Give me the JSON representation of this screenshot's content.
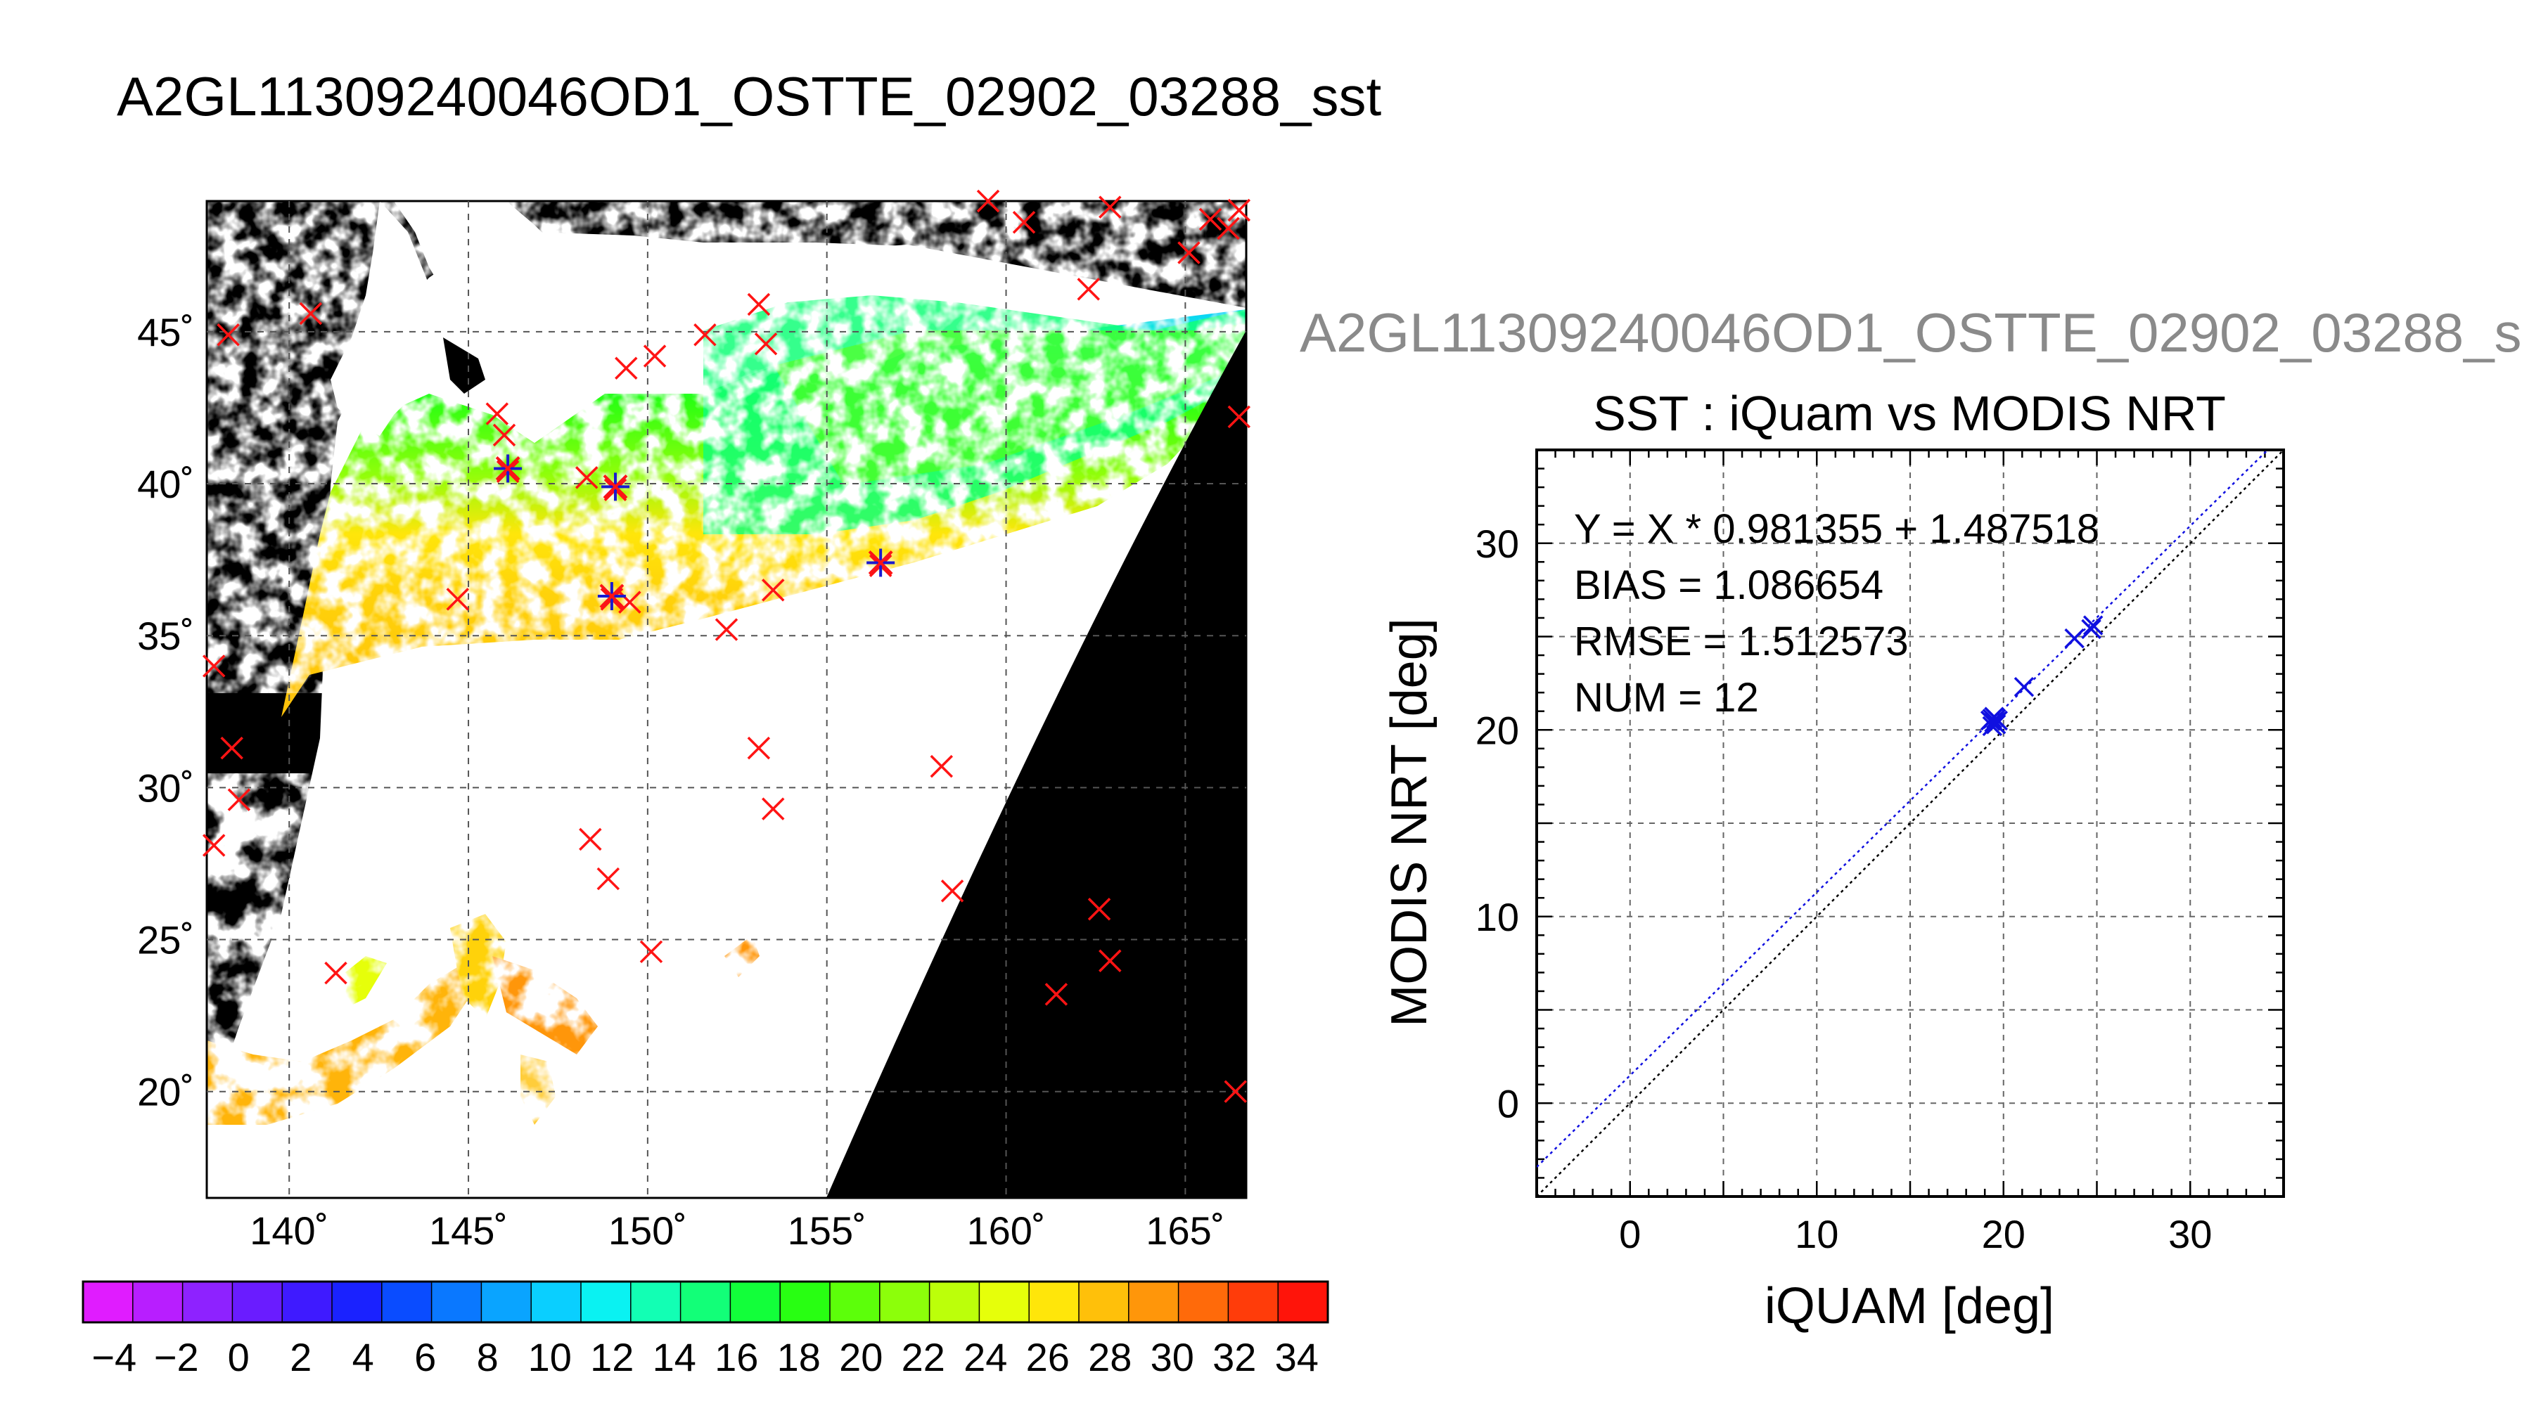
{
  "page_title": "A2GL11309240046OD1_OSTTE_02902_03288_sst",
  "scatter_header": "A2GL11309240046OD1_OSTTE_02902_03288_s",
  "chart_data": [
    {
      "type": "heatmap",
      "title": "A2GL11309240046OD1_OSTTE_02902_03288_sst",
      "x_ticks": [
        "140˚",
        "145˚",
        "150˚",
        "155˚",
        "160˚",
        "165˚"
      ],
      "y_ticks": [
        "20˚",
        "25˚",
        "30˚",
        "35˚",
        "40˚",
        "45˚"
      ],
      "x_range": [
        137.7,
        166.7
      ],
      "y_range": [
        16.5,
        49.3
      ],
      "grid": true,
      "colorbar": {
        "ticks": [
          "−4",
          "−2",
          "0",
          "2",
          "4",
          "6",
          "8",
          "10",
          "12",
          "14",
          "16",
          "18",
          "20",
          "22",
          "24",
          "26",
          "28",
          "30",
          "32",
          "34"
        ],
        "range": [
          -5,
          35
        ],
        "colors": [
          "#e01cff",
          "#b81eff",
          "#8e22ff",
          "#6a1cff",
          "#3f1aff",
          "#1a22ff",
          "#0a4cff",
          "#0a78ff",
          "#0aa4ff",
          "#0acfff",
          "#0af2f2",
          "#12ffb4",
          "#12ff78",
          "#12ff3a",
          "#28ff12",
          "#5cff0a",
          "#8cff0a",
          "#bcff0a",
          "#e6ff0a",
          "#ffe60a",
          "#ffc00a",
          "#ff960a",
          "#ff6a0a",
          "#ff3c0a",
          "#ff140a"
        ]
      },
      "iquam_points": [
        {
          "lon": 138.3,
          "lat": 44.9
        },
        {
          "lon": 140.6,
          "lat": 45.6
        },
        {
          "lon": 145.8,
          "lat": 42.3
        },
        {
          "lon": 146.0,
          "lat": 41.6
        },
        {
          "lon": 146.1,
          "lat": 40.4
        },
        {
          "lon": 148.3,
          "lat": 40.2
        },
        {
          "lon": 149.1,
          "lat": 39.8
        },
        {
          "lon": 149.4,
          "lat": 43.8
        },
        {
          "lon": 150.2,
          "lat": 44.2
        },
        {
          "lon": 151.6,
          "lat": 44.9
        },
        {
          "lon": 153.1,
          "lat": 45.9
        },
        {
          "lon": 153.3,
          "lat": 44.6
        },
        {
          "lon": 144.7,
          "lat": 36.2
        },
        {
          "lon": 149.0,
          "lat": 36.2
        },
        {
          "lon": 149.5,
          "lat": 36.1
        },
        {
          "lon": 152.2,
          "lat": 35.2
        },
        {
          "lon": 153.5,
          "lat": 36.5
        },
        {
          "lon": 156.5,
          "lat": 37.3
        },
        {
          "lon": 153.1,
          "lat": 31.3
        },
        {
          "lon": 153.5,
          "lat": 29.3
        },
        {
          "lon": 158.2,
          "lat": 30.7
        },
        {
          "lon": 148.4,
          "lat": 28.3
        },
        {
          "lon": 148.9,
          "lat": 27.0
        },
        {
          "lon": 150.1,
          "lat": 24.6
        },
        {
          "lon": 158.5,
          "lat": 26.6
        },
        {
          "lon": 162.6,
          "lat": 26.0
        },
        {
          "lon": 162.9,
          "lat": 24.3
        },
        {
          "lon": 161.4,
          "lat": 23.2
        },
        {
          "lon": 141.3,
          "lat": 23.9
        },
        {
          "lon": 137.9,
          "lat": 34.0
        },
        {
          "lon": 138.4,
          "lat": 31.3
        },
        {
          "lon": 138.6,
          "lat": 29.6
        },
        {
          "lon": 137.9,
          "lat": 28.1
        },
        {
          "lon": 160.5,
          "lat": 48.6
        },
        {
          "lon": 162.9,
          "lat": 49.1
        },
        {
          "lon": 165.1,
          "lat": 47.6
        },
        {
          "lon": 165.7,
          "lat": 48.7
        },
        {
          "lon": 166.2,
          "lat": 48.4
        },
        {
          "lon": 166.5,
          "lat": 49.0
        },
        {
          "lon": 159.5,
          "lat": 49.3
        },
        {
          "lon": 162.3,
          "lat": 46.4
        },
        {
          "lon": 166.5,
          "lat": 42.2
        },
        {
          "lon": 166.4,
          "lat": 20.0
        }
      ],
      "matchup_points": [
        {
          "lon": 146.1,
          "lat": 40.5
        },
        {
          "lon": 149.1,
          "lat": 39.9
        },
        {
          "lon": 149.0,
          "lat": 36.3
        },
        {
          "lon": 156.5,
          "lat": 37.4
        }
      ]
    },
    {
      "type": "scatter",
      "title": "SST : iQuam vs MODIS NRT",
      "xlabel": "iQUAM [deg]",
      "ylabel": "MODIS NRT [deg]",
      "xlim": [
        -5,
        35
      ],
      "ylim": [
        -5,
        35
      ],
      "x_ticks": [
        "0",
        "10",
        "20",
        "30"
      ],
      "y_ticks": [
        "0",
        "10",
        "20",
        "30"
      ],
      "grid": true,
      "stats": [
        "Y = X * 0.981355 + 1.487518",
        "BIAS = 1.086654",
        "RMSE = 1.512573",
        "NUM = 12"
      ],
      "fit": {
        "slope": 0.981355,
        "intercept": 1.487518
      },
      "points": [
        {
          "x": 19.4,
          "y": 20.6
        },
        {
          "x": 19.6,
          "y": 20.3
        },
        {
          "x": 19.5,
          "y": 20.4
        },
        {
          "x": 19.3,
          "y": 20.5
        },
        {
          "x": 19.7,
          "y": 20.5
        },
        {
          "x": 19.5,
          "y": 20.7
        },
        {
          "x": 19.4,
          "y": 20.2
        },
        {
          "x": 21.1,
          "y": 22.3
        },
        {
          "x": 23.8,
          "y": 24.9
        },
        {
          "x": 24.8,
          "y": 25.6
        },
        {
          "x": 24.7,
          "y": 25.4
        },
        {
          "x": 19.6,
          "y": 20.6
        }
      ],
      "colors": {
        "points": "#1010e0",
        "fit_line": "#1010e0",
        "identity_line": "#000000"
      }
    }
  ]
}
